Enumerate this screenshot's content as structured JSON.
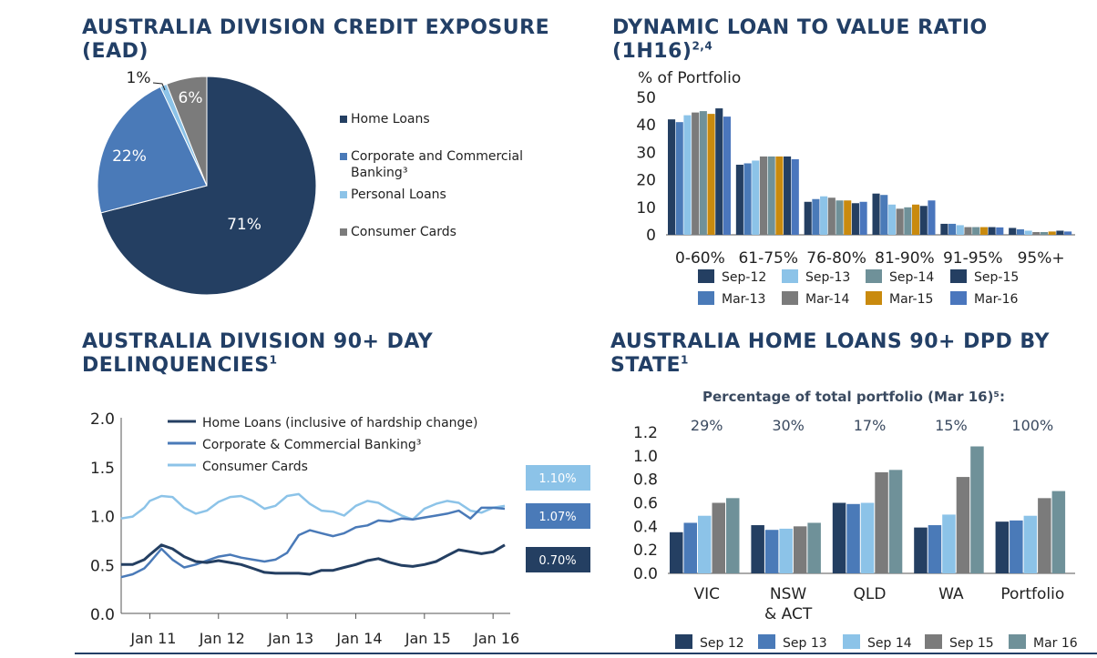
{
  "titles": {
    "pie": {
      "line1": "AUSTRALIA DIVISION CREDIT EXPOSURE",
      "line2": "(EAD)"
    },
    "lvr": {
      "line1": "DYNAMIC LOAN TO VALUE RATIO",
      "line2": "(1H16)",
      "sup": "2,4"
    },
    "delinq": {
      "line1": "AUSTRALIA DIVISION 90+ DAY",
      "line2": "DELINQUENCIES",
      "sup": "1"
    },
    "state": {
      "line1": "AUSTRALIA HOME LOANS 90+ DPD BY",
      "line2": "STATE",
      "sup": "1"
    }
  },
  "colors": {
    "title": "#223f66",
    "navy": "#243f62",
    "mid_blue": "#4a7ab8",
    "light_blue": "#8cc3e8",
    "grey": "#7b7b7b",
    "teal_grey": "#6f9199",
    "gold": "#c98a0e",
    "blue2": "#4a76bd"
  },
  "chart_data": [
    {
      "type": "pie",
      "slices": [
        {
          "label": "Home Loans",
          "value": 71,
          "display": "71%",
          "color": "#243f62"
        },
        {
          "label": "Corporate and Commercial Banking³",
          "value": 22,
          "display": "22%",
          "color": "#4a7ab8"
        },
        {
          "label": "Personal Loans",
          "value": 1,
          "display": "1%",
          "color": "#8cc3e8"
        },
        {
          "label": "Consumer Cards",
          "value": 6,
          "display": "6%",
          "color": "#7b7b7b"
        }
      ],
      "legend": [
        "Home Loans",
        "Corporate and Commercial Banking³",
        "Personal Loans",
        "Consumer Cards"
      ]
    },
    {
      "type": "bar",
      "ylabel": "% of Portfolio",
      "ylim": [
        0,
        50
      ],
      "yticks": [
        "0",
        "10",
        "20",
        "30",
        "40",
        "50"
      ],
      "categories": [
        "0-60%",
        "61-75%",
        "76-80%",
        "81-90%",
        "91-95%",
        "95%+"
      ],
      "series": [
        {
          "name": "Sep-12",
          "color": "#243f62",
          "values": [
            42,
            25.5,
            12,
            15,
            4,
            2.5
          ]
        },
        {
          "name": "Mar-13",
          "color": "#4a7ab8",
          "values": [
            41,
            26,
            13,
            14.5,
            4,
            2
          ]
        },
        {
          "name": "Sep-13",
          "color": "#8cc3e8",
          "values": [
            43.5,
            27,
            14,
            11,
            3.5,
            1.5
          ]
        },
        {
          "name": "Mar-14",
          "color": "#7b7b7b",
          "values": [
            44.5,
            28.5,
            13.5,
            9.5,
            2.8,
            1
          ]
        },
        {
          "name": "Sep-14",
          "color": "#6f9199",
          "values": [
            45,
            28.5,
            12.5,
            10,
            2.8,
            1
          ]
        },
        {
          "name": "Mar-15",
          "color": "#c98a0e",
          "values": [
            44,
            28.5,
            12.5,
            11,
            2.8,
            1.2
          ]
        },
        {
          "name": "Sep-15",
          "color": "#243f62",
          "values": [
            46,
            28.5,
            11.5,
            10.5,
            2.8,
            1.5
          ]
        },
        {
          "name": "Mar-16",
          "color": "#4a76bd",
          "values": [
            43,
            27.5,
            12,
            12.5,
            2.7,
            1.2
          ]
        }
      ],
      "legend_order": [
        "Sep-12",
        "Sep-13",
        "Sep-14",
        "Sep-15",
        "Mar-13",
        "Mar-14",
        "Mar-15",
        "Mar-16"
      ]
    },
    {
      "type": "line",
      "ylim": [
        0,
        2
      ],
      "yticks": [
        "0.0",
        "0.5",
        "1.0",
        "1.5",
        "2.0"
      ],
      "xticks": [
        "Jan 11",
        "Jan 12",
        "Jan 13",
        "Jan 14",
        "Jan 15",
        "Jan 16"
      ],
      "x_start": 2010.583,
      "x_end": 2016.25,
      "series": [
        {
          "name": "Home Loans (inclusive of hardship change)",
          "color": "#243f62",
          "end_label": "0.70%",
          "x": [
            2010.58,
            2010.75,
            2010.92,
            2011.0,
            2011.17,
            2011.33,
            2011.5,
            2011.67,
            2011.83,
            2012.0,
            2012.17,
            2012.33,
            2012.5,
            2012.67,
            2012.83,
            2013.0,
            2013.17,
            2013.33,
            2013.5,
            2013.67,
            2013.83,
            2014.0,
            2014.17,
            2014.33,
            2014.5,
            2014.67,
            2014.83,
            2015.0,
            2015.17,
            2015.33,
            2015.5,
            2015.67,
            2015.83,
            2016.0,
            2016.17
          ],
          "y": [
            0.5,
            0.5,
            0.55,
            0.6,
            0.7,
            0.66,
            0.58,
            0.53,
            0.52,
            0.54,
            0.52,
            0.5,
            0.46,
            0.42,
            0.41,
            0.41,
            0.41,
            0.4,
            0.44,
            0.44,
            0.47,
            0.5,
            0.54,
            0.56,
            0.52,
            0.49,
            0.48,
            0.5,
            0.53,
            0.59,
            0.65,
            0.63,
            0.61,
            0.63,
            0.7
          ]
        },
        {
          "name": "Corporate & Commercial Banking³",
          "color": "#4a7ab8",
          "end_label": "1.07%",
          "x": [
            2010.58,
            2010.75,
            2010.92,
            2011.0,
            2011.17,
            2011.33,
            2011.5,
            2011.67,
            2011.83,
            2012.0,
            2012.17,
            2012.33,
            2012.5,
            2012.67,
            2012.83,
            2013.0,
            2013.17,
            2013.33,
            2013.5,
            2013.67,
            2013.83,
            2014.0,
            2014.17,
            2014.33,
            2014.5,
            2014.67,
            2014.83,
            2015.0,
            2015.17,
            2015.33,
            2015.5,
            2015.67,
            2015.83,
            2016.0,
            2016.17
          ],
          "y": [
            0.37,
            0.4,
            0.46,
            0.52,
            0.66,
            0.55,
            0.47,
            0.5,
            0.54,
            0.58,
            0.6,
            0.57,
            0.55,
            0.53,
            0.55,
            0.62,
            0.8,
            0.85,
            0.82,
            0.79,
            0.82,
            0.88,
            0.9,
            0.95,
            0.94,
            0.97,
            0.96,
            0.98,
            1.0,
            1.02,
            1.05,
            0.97,
            1.08,
            1.08,
            1.07
          ]
        },
        {
          "name": "Consumer Cards",
          "color": "#8cc3e8",
          "end_label": "1.10%",
          "x": [
            2010.58,
            2010.75,
            2010.92,
            2011.0,
            2011.17,
            2011.33,
            2011.5,
            2011.67,
            2011.83,
            2012.0,
            2012.17,
            2012.33,
            2012.5,
            2012.67,
            2012.83,
            2013.0,
            2013.17,
            2013.33,
            2013.5,
            2013.67,
            2013.83,
            2014.0,
            2014.17,
            2014.33,
            2014.5,
            2014.67,
            2014.83,
            2015.0,
            2015.17,
            2015.33,
            2015.5,
            2015.67,
            2015.83,
            2016.0,
            2016.17
          ],
          "y": [
            0.97,
            0.99,
            1.08,
            1.15,
            1.2,
            1.19,
            1.08,
            1.02,
            1.05,
            1.14,
            1.19,
            1.2,
            1.15,
            1.07,
            1.1,
            1.2,
            1.22,
            1.12,
            1.05,
            1.04,
            1.0,
            1.1,
            1.15,
            1.13,
            1.06,
            1.0,
            0.96,
            1.07,
            1.12,
            1.15,
            1.13,
            1.05,
            1.03,
            1.08,
            1.1
          ]
        }
      ]
    },
    {
      "type": "bar",
      "subtitle": "Percentage of total portfolio (Mar 16)⁵:",
      "ylim": [
        0,
        1.2
      ],
      "yticks": [
        "0.0",
        "0.2",
        "0.4",
        "0.6",
        "0.8",
        "1.0",
        "1.2"
      ],
      "categories": [
        "VIC",
        "NSW & ACT",
        "QLD",
        "WA",
        "Portfolio"
      ],
      "category_lines": [
        [
          "VIC"
        ],
        [
          "NSW",
          "& ACT"
        ],
        [
          "QLD"
        ],
        [
          "WA"
        ],
        [
          "Portfolio"
        ]
      ],
      "portfolio_shares": [
        "29%",
        "30%",
        "17%",
        "15%",
        "100%"
      ],
      "series": [
        {
          "name": "Sep 12",
          "color": "#243f62",
          "values": [
            0.35,
            0.41,
            0.6,
            0.39,
            0.44
          ]
        },
        {
          "name": "Sep 13",
          "color": "#4a7ab8",
          "values": [
            0.43,
            0.37,
            0.59,
            0.41,
            0.45
          ]
        },
        {
          "name": "Sep 14",
          "color": "#8cc3e8",
          "values": [
            0.49,
            0.38,
            0.6,
            0.5,
            0.49
          ]
        },
        {
          "name": "Sep 15",
          "color": "#7b7b7b",
          "values": [
            0.6,
            0.4,
            0.86,
            0.82,
            0.64
          ]
        },
        {
          "name": "Mar 16",
          "color": "#6f9199",
          "values": [
            0.64,
            0.43,
            0.88,
            1.08,
            0.7
          ]
        }
      ]
    }
  ]
}
